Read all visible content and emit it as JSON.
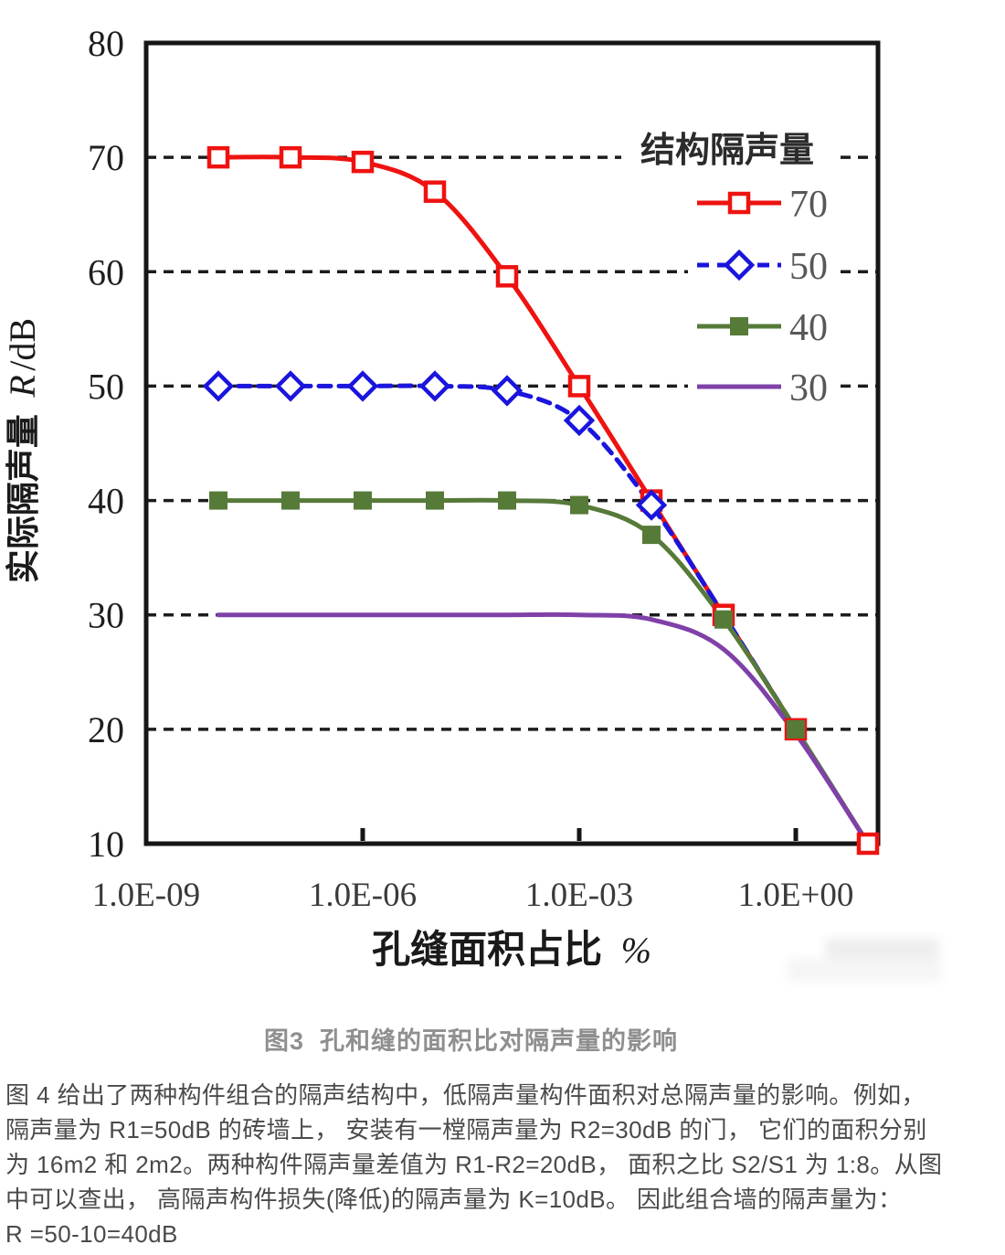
{
  "figure_caption": "图3  孔和缝的面积比对隔声量的影响",
  "paragraph_lines": [
    "图 4 给出了两种构件组合的隔声结构中，低隔声量构件面积对总隔声量的影响。例如，",
    "隔声量为 R1=50dB 的砖墙上， 安装有一樘隔声量为 R2=30dB 的门， 它们的面积分别",
    "为 16m2 和 2m2。两种构件隔声量差值为 R1-R2=20dB， 面积之比 S2/S1 为 1:8。从图",
    "中可以查出， 高隔声构件损失(降低)的隔声量为 K=10dB。 因此组合墙的隔声量为：",
    "R =50-10=40dB"
  ],
  "chart_data": {
    "type": "line",
    "title": "",
    "xlabel_cn": "孔缝面积占比",
    "xlabel_unit": "%",
    "ylabel_cn": "实际隔声量",
    "ylabel_r": "R",
    "ylabel_unit": "/dB",
    "x_scale": "log",
    "x_unit": "percent",
    "ylim": [
      10,
      80
    ],
    "xlim_decades": [
      -9,
      1.3
    ],
    "y_ticks": [
      80,
      70,
      60,
      50,
      40,
      30,
      20,
      10
    ],
    "gridlines_y": [
      70,
      60,
      50,
      40,
      30,
      20
    ],
    "x_ticks": [
      {
        "label": "1.0E-09",
        "decade": -9
      },
      {
        "label": "1.0E-06",
        "decade": -6
      },
      {
        "label": "1.0E-03",
        "decade": -3
      },
      {
        "label": "1.0E+00",
        "decade": 0
      }
    ],
    "x_decades": [
      -8,
      -7,
      -6,
      -5,
      -4,
      -3,
      -2,
      -1,
      0,
      1
    ],
    "legend_title": "结构隔声量",
    "legend_position": "top-right-inside",
    "grid": true,
    "series": [
      {
        "name": "70",
        "color": "#ee1310",
        "line_style": "solid",
        "marker": "open-square",
        "markers_count": 10,
        "values": [
          70,
          70,
          69.6,
          67,
          59.6,
          50,
          40,
          30,
          20,
          10
        ]
      },
      {
        "name": "50",
        "color": "#1a15dd",
        "line_style": "dashed",
        "marker": "open-diamond",
        "markers_count": 7,
        "values": [
          50,
          50,
          50,
          50,
          49.6,
          47,
          39.6,
          30,
          20,
          10
        ]
      },
      {
        "name": "40",
        "color": "#567a38",
        "line_style": "solid",
        "marker": "filled-square",
        "markers_count": 9,
        "values": [
          40,
          40,
          40,
          40,
          40,
          39.6,
          37,
          29.6,
          20,
          10
        ]
      },
      {
        "name": "30",
        "color": "#7f41a8",
        "line_style": "solid",
        "marker": "none",
        "markers_count": 0,
        "values": [
          30,
          30,
          30,
          30,
          30,
          30,
          29.6,
          27,
          19.6,
          10
        ]
      }
    ]
  }
}
